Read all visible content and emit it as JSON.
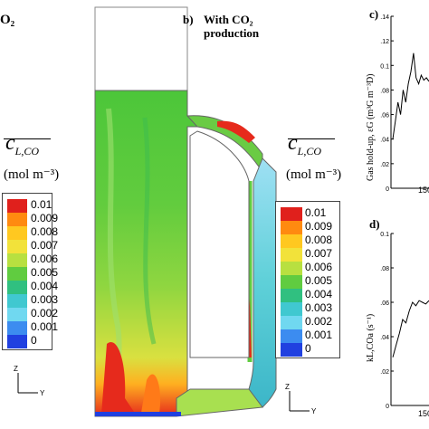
{
  "left_fragment": {
    "co2_text": "O₂"
  },
  "panel_b": {
    "letter": "b)",
    "title_line1": "With CO₂",
    "title_line2": "production"
  },
  "legend_left": {
    "symbol": "c",
    "subscript": "L,CO",
    "unit": "(mol m⁻³)",
    "ticks": [
      "0.01",
      "0.009",
      "0.008",
      "0.007",
      "0.006",
      "0.005",
      "0.004",
      "0.003",
      "0.002",
      "0.001",
      "0"
    ],
    "colors": [
      "#e0201c",
      "#ff8a10",
      "#ffc820",
      "#f2e23a",
      "#b8e040",
      "#60cc40",
      "#30c080",
      "#40c8d0",
      "#70d8f0",
      "#3c8cf0",
      "#2040e0"
    ]
  },
  "legend_right": {
    "symbol": "c",
    "subscript": "L,CO",
    "unit": "(mol m⁻³)",
    "ticks": [
      "0.01",
      "0.009",
      "0.008",
      "0.007",
      "0.006",
      "0.005",
      "0.004",
      "0.003",
      "0.002",
      "0.001",
      "0"
    ],
    "colors": [
      "#e0201c",
      "#ff8a10",
      "#ffc820",
      "#f2e23a",
      "#b8e040",
      "#60cc40",
      "#30c080",
      "#40c8d0",
      "#70d8f0",
      "#3c8cf0",
      "#2040e0"
    ]
  },
  "axes_left": {
    "z": "Z",
    "y": "Y"
  },
  "axes_right": {
    "z": "Z",
    "y": "Y"
  },
  "panel_c": {
    "letter": "c)",
    "ylabel": "Gas hold-up, εG (m³G m⁻³D)",
    "yticks": [
      "0.14",
      "0.12",
      "0.1",
      "0.08",
      "0.06",
      "0.04",
      "0.02",
      "0"
    ],
    "xtick": "150"
  },
  "panel_d": {
    "letter": "d)",
    "ylabel": "kL,COa (s⁻¹)",
    "yticks": [
      "0.1",
      "0.08",
      "0.06",
      "0.04",
      "0.02",
      "0"
    ],
    "xtick": "150"
  },
  "chart_data": [
    {
      "type": "line",
      "title": "",
      "xlabel": "",
      "ylabel": "Gas hold-up, εG (m³G m⁻³D)",
      "ylim": [
        0,
        0.14
      ],
      "series": [
        {
          "values": [
            0.04,
            0.055,
            0.07,
            0.06,
            0.08,
            0.07,
            0.085,
            0.095,
            0.11,
            0.09,
            0.085,
            0.092,
            0.088,
            0.09,
            0.087
          ]
        }
      ]
    },
    {
      "type": "line",
      "title": "",
      "xlabel": "",
      "ylabel": "kL,COa (s⁻¹)",
      "ylim": [
        0,
        0.1
      ],
      "series": [
        {
          "values": [
            0.028,
            0.035,
            0.042,
            0.05,
            0.048,
            0.055,
            0.06,
            0.058,
            0.061,
            0.06,
            0.059,
            0.061
          ]
        }
      ]
    }
  ]
}
